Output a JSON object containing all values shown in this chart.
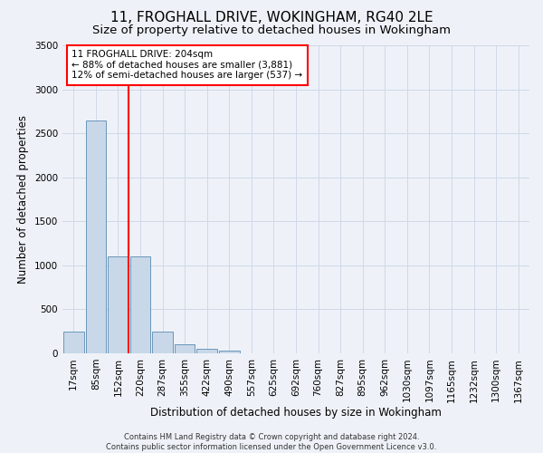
{
  "title": "11, FROGHALL DRIVE, WOKINGHAM, RG40 2LE",
  "subtitle": "Size of property relative to detached houses in Wokingham",
  "xlabel": "Distribution of detached houses by size in Wokingham",
  "ylabel": "Number of detached properties",
  "footer_line1": "Contains HM Land Registry data © Crown copyright and database right 2024.",
  "footer_line2": "Contains public sector information licensed under the Open Government Licence v3.0.",
  "bin_labels": [
    "17sqm",
    "85sqm",
    "152sqm",
    "220sqm",
    "287sqm",
    "355sqm",
    "422sqm",
    "490sqm",
    "557sqm",
    "625sqm",
    "692sqm",
    "760sqm",
    "827sqm",
    "895sqm",
    "962sqm",
    "1030sqm",
    "1097sqm",
    "1165sqm",
    "1232sqm",
    "1300sqm",
    "1367sqm"
  ],
  "bar_values": [
    250,
    2650,
    1100,
    1100,
    250,
    100,
    50,
    30,
    0,
    0,
    0,
    0,
    0,
    0,
    0,
    0,
    0,
    0,
    0,
    0,
    0
  ],
  "bar_color": "#c8d8e8",
  "bar_edge_color": "#5a8ab0",
  "annotation_line1": "11 FROGHALL DRIVE: 204sqm",
  "annotation_line2": "← 88% of detached houses are smaller (3,881)",
  "annotation_line3": "12% of semi-detached houses are larger (537) →",
  "annotation_box_color": "white",
  "annotation_box_edge": "red",
  "ylim": [
    0,
    3500
  ],
  "yticks": [
    0,
    500,
    1000,
    1500,
    2000,
    2500,
    3000,
    3500
  ],
  "grid_color": "#d0d8e8",
  "background_color": "#eef2f8",
  "title_fontsize": 11,
  "subtitle_fontsize": 9.5,
  "axis_label_fontsize": 8.5,
  "tick_fontsize": 7.5,
  "annotation_fontsize": 7.5,
  "footer_fontsize": 6.0
}
